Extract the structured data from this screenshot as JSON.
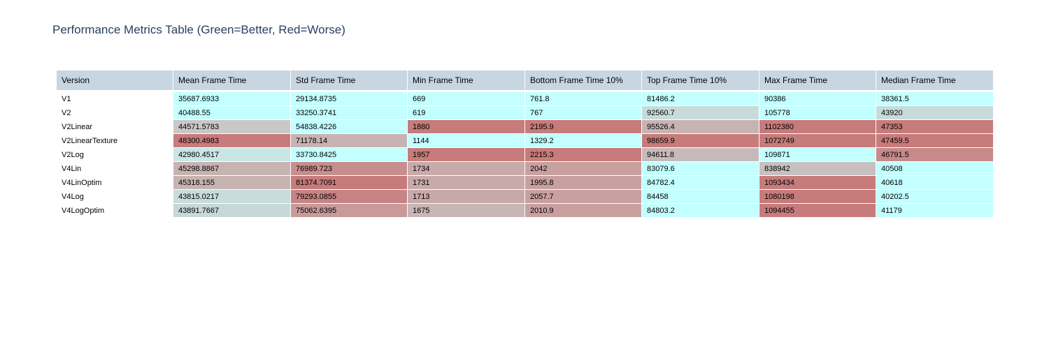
{
  "chart_data": {
    "type": "table",
    "title": "Performance Metrics Table (Green=Better, Red=Worse)",
    "columns": [
      "Version",
      "Mean Frame Time",
      "Std Frame Time",
      "Min Frame Time",
      "Bottom Frame Time 10%",
      "Top Frame Time 10%",
      "Max Frame Time",
      "Median Frame Time"
    ],
    "rows": [
      [
        "V1",
        "35687.6933",
        "29134.8735",
        "669",
        "761.8",
        "81486.2",
        "90386",
        "38361.5"
      ],
      [
        "V2",
        "40488.55",
        "33250.3741",
        "619",
        "767",
        "92560.7",
        "105778",
        "43920"
      ],
      [
        "V2Linear",
        "44571.5783",
        "54838.4226",
        "1880",
        "2195.9",
        "95526.4",
        "1102380",
        "47353"
      ],
      [
        "V2LinearTexture",
        "48300.4983",
        "71178.14",
        "1144",
        "1329.2",
        "98659.9",
        "1072749",
        "47459.5"
      ],
      [
        "V2Log",
        "42980.4517",
        "33730.8425",
        "1957",
        "2215.3",
        "94611.8",
        "109871",
        "46791.5"
      ],
      [
        "V4Lin",
        "45298.8867",
        "76989.723",
        "1734",
        "2042",
        "83079.6",
        "838942",
        "40508"
      ],
      [
        "V4LinOptim",
        "45318.155",
        "81374.7091",
        "1731",
        "1995.8",
        "84782.4",
        "1093434",
        "40618"
      ],
      [
        "V4Log",
        "43815.0217",
        "79293.0855",
        "1713",
        "2057.7",
        "84458",
        "1080198",
        "40202.5"
      ],
      [
        "V4LogOptim",
        "43891.7667",
        "75062.6395",
        "1675",
        "2010.9",
        "84803.2",
        "1094455",
        "41179"
      ]
    ],
    "cell_colors": [
      [
        "#c3ffff",
        "#c3ffff",
        "#c3ffff",
        "#c3ffff",
        "#c3ffff",
        "#c3ffff",
        "#c3ffff"
      ],
      [
        "#c3ffff",
        "#c3ffff",
        "#c3ffff",
        "#c3ffff",
        "#c8dbdb",
        "#c3ffff",
        "#c8dbdb"
      ],
      [
        "#c8c8c8",
        "#c3ffff",
        "#c77b7b",
        "#c77b7b",
        "#c8b3b3",
        "#c77b7b",
        "#c77b7b"
      ],
      [
        "#c77b7b",
        "#c8b3b3",
        "#c3ffff",
        "#c3ffff",
        "#c77b7b",
        "#c77b7b",
        "#c77b7b"
      ],
      [
        "#c8e6e6",
        "#c3ffff",
        "#c77b7b",
        "#c77b7b",
        "#c8b9b9",
        "#c3ffff",
        "#c78989"
      ],
      [
        "#c8b3b3",
        "#c78e8e",
        "#c8aaaa",
        "#c8a0a0",
        "#c3ffff",
        "#c8c0c0",
        "#c3ffff"
      ],
      [
        "#c8b3b3",
        "#c77b7b",
        "#c8aaaa",
        "#c8a0a0",
        "#c3ffff",
        "#c77b7b",
        "#c3ffff"
      ],
      [
        "#c8dcdc",
        "#c78484",
        "#c8a9a9",
        "#c8a0a0",
        "#c3ffff",
        "#c77b7b",
        "#c3ffff"
      ],
      [
        "#c8d8d8",
        "#c89a9a",
        "#c8b5b5",
        "#c8a0a0",
        "#c3ffff",
        "#c77b7b",
        "#c3ffff"
      ]
    ]
  }
}
